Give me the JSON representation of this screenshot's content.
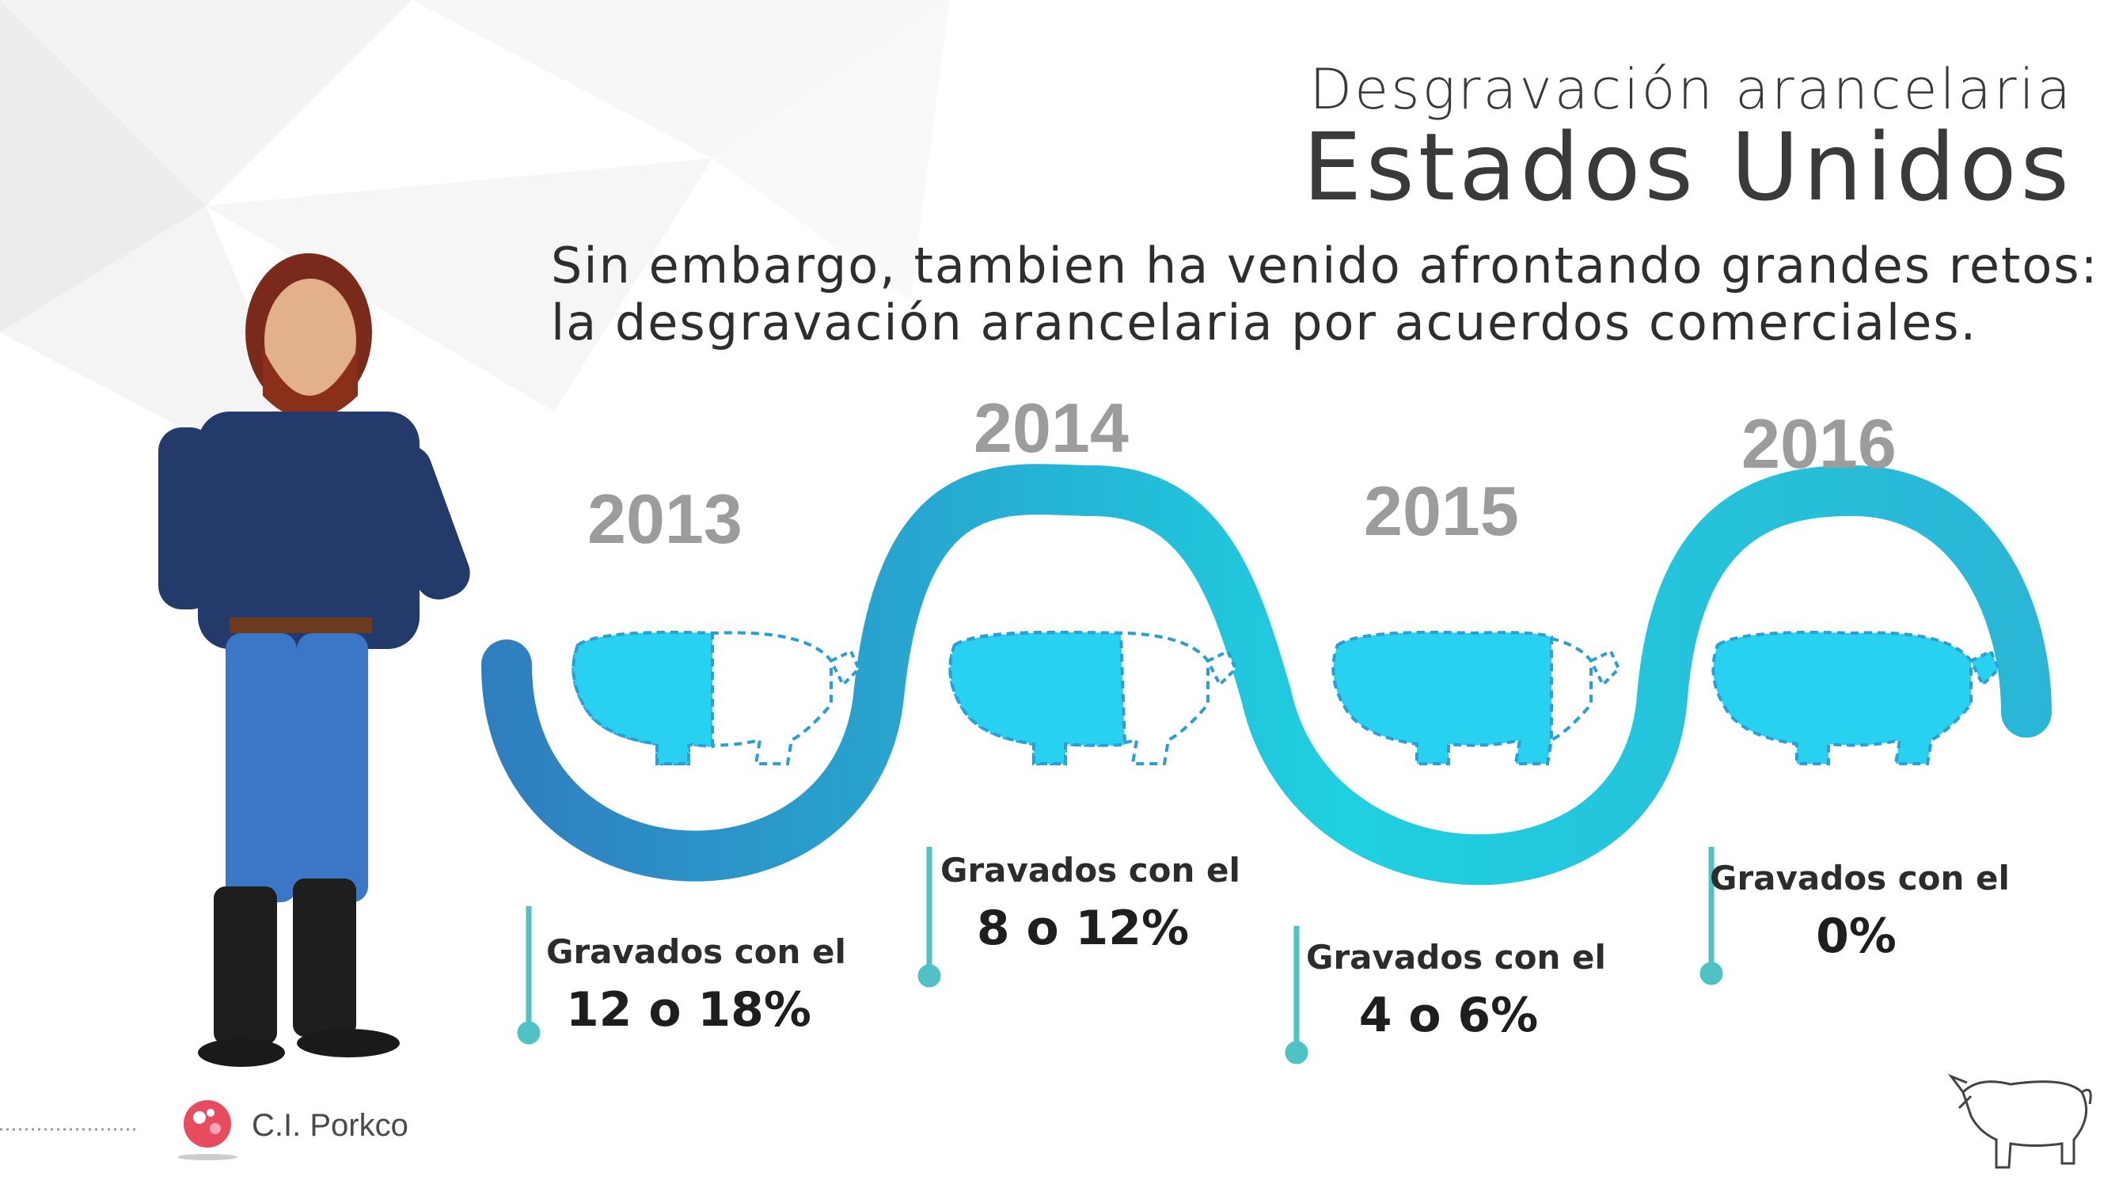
{
  "header": {
    "title_line1": "Desgravación arancelaria",
    "title_line2": "Estados Unidos"
  },
  "intro": {
    "line1": "Sin embargo, tambien ha venido afrontando grandes retos:",
    "line2": "la desgravación arancelaria por acuerdos comerciales."
  },
  "timeline": [
    {
      "year": "2013",
      "label": "Gravados con el",
      "value": "12 o 18%"
    },
    {
      "year": "2014",
      "label": "Gravados con el",
      "value": "8 o 12%"
    },
    {
      "year": "2015",
      "label": "Gravados con el",
      "value": "4 o 6%"
    },
    {
      "year": "2016",
      "label": "Gravados con el",
      "value": "0%"
    }
  ],
  "brand": {
    "name": "C.I. Porkco"
  },
  "colors": {
    "wave_start": "#2f7fbf",
    "wave_end": "#1fd0e0",
    "pig_fill": "#29d1f0",
    "accent": "#4fc2c6",
    "year": "#9c9c9c"
  }
}
